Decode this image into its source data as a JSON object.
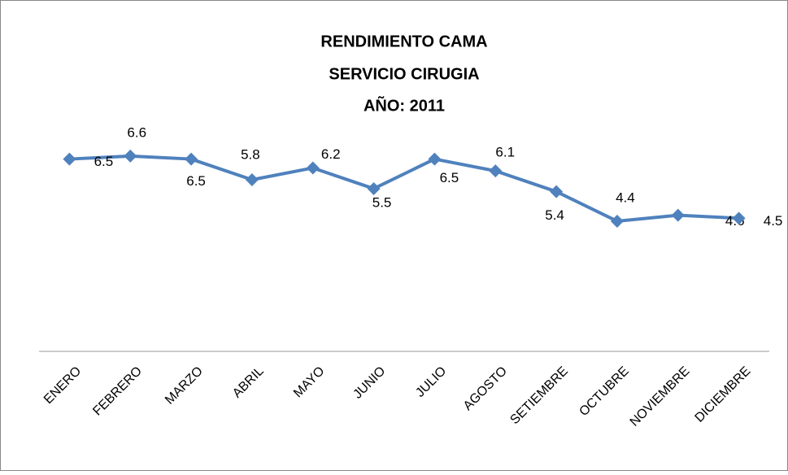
{
  "chart_data": {
    "type": "line",
    "title": [
      "RENDIMIENTO CAMA",
      "SERVICIO CIRUGIA",
      "AÑO: 2011"
    ],
    "categories": [
      "ENERO",
      "FEBRERO",
      "MARZO",
      "ABRIL",
      "MAYO",
      "JUNIO",
      "JULIO",
      "AGOSTO",
      "SETIEMBRE",
      "OCTUBRE",
      "NOVIEMBRE",
      "DICIEMBRE"
    ],
    "values": [
      6.5,
      6.6,
      6.5,
      5.8,
      6.2,
      5.5,
      6.5,
      6.1,
      5.4,
      4.4,
      4.6,
      4.5
    ],
    "color": "#4f81bd",
    "ylim": [
      0,
      8
    ]
  }
}
